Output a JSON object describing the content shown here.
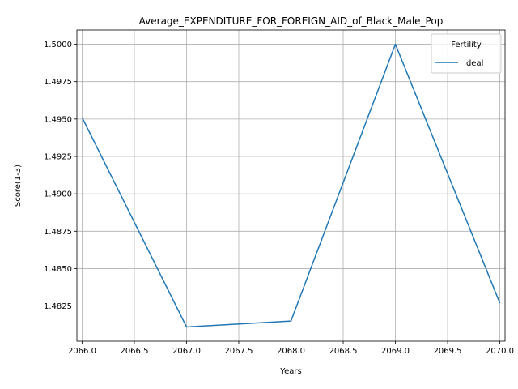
{
  "chart_data": {
    "type": "line",
    "title": "Average_EXPENDITURE_FOR_FOREIGN_AID_of_Black_Male_Pop",
    "xlabel": "Years",
    "ylabel": "Score(1-3)",
    "x": [
      2066,
      2067,
      2068,
      2069,
      2070
    ],
    "series": [
      {
        "name": "Ideal",
        "color": "#1f77b4",
        "values": [
          1.4951,
          1.4811,
          1.4815,
          1.5,
          1.4827
        ]
      }
    ],
    "xlim": [
      2065.95,
      2070.05
    ],
    "ylim": [
      1.48015,
      1.50095
    ],
    "xticks": [
      "2066.0",
      "2066.5",
      "2067.0",
      "2067.5",
      "2068.0",
      "2068.5",
      "2069.0",
      "2069.5",
      "2070.0"
    ],
    "yticks": [
      "1.4825",
      "1.4850",
      "1.4875",
      "1.4900",
      "1.4925",
      "1.4950",
      "1.4975",
      "1.5000"
    ],
    "grid": true,
    "legend": {
      "title": "Fertility",
      "placement": "top-right"
    }
  }
}
